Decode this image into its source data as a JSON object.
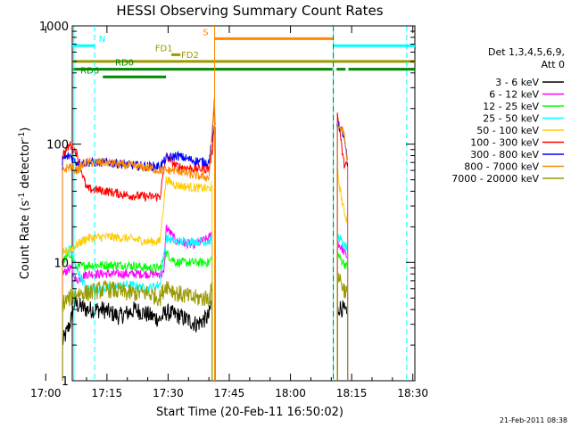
{
  "chart_data": {
    "type": "line",
    "title": "HESSI Observing Summary Count Rates",
    "xlabel": "Start Time (20-Feb-11 16:50:02)",
    "ylabel_parts": [
      "Count Rate (s",
      "-1",
      " detector",
      "-1",
      ")"
    ],
    "timestamp": "21-Feb-2011 08:38",
    "x_range_minutes": [
      16.5,
      100.5
    ],
    "x_ticks": [
      {
        "m": 10,
        "label": "17:00"
      },
      {
        "m": 25,
        "label": "17:15"
      },
      {
        "m": 40,
        "label": "17:30"
      },
      {
        "m": 55,
        "label": "17:45"
      },
      {
        "m": 70,
        "label": "18:00"
      },
      {
        "m": 85,
        "label": "18:15"
      },
      {
        "m": 100,
        "label": "18:30"
      }
    ],
    "y_scale": "log",
    "y_range": [
      1,
      1000
    ],
    "y_ticks": [
      {
        "v": 1,
        "label": "1"
      },
      {
        "v": 10,
        "label": "10"
      },
      {
        "v": 100,
        "label": "100"
      },
      {
        "v": 1000,
        "label": "1000"
      }
    ],
    "legend_header": [
      "Det 1,3,4,5,6,9,",
      "Att 0"
    ],
    "series": [
      {
        "name": "3 - 6 keV",
        "color": "#000000",
        "points": [
          [
            14.1,
            2.1
          ],
          [
            15,
            2.5
          ],
          [
            16.5,
            3.5
          ],
          [
            17,
            4.5
          ],
          [
            20,
            4
          ],
          [
            24,
            4
          ],
          [
            28,
            3.5
          ],
          [
            32,
            4
          ],
          [
            36,
            3.5
          ],
          [
            38,
            3.3
          ],
          [
            39.5,
            3.8
          ],
          [
            43,
            3.5
          ],
          [
            47,
            3
          ],
          [
            50,
            3.5
          ],
          [
            50.8,
            5
          ]
        ],
        "points2": [
          [
            81.5,
            3.8
          ],
          [
            82,
            4.2
          ],
          [
            83,
            4
          ],
          [
            84,
            3.4
          ]
        ]
      },
      {
        "name": "6 - 12 keV",
        "color": "#ff00ff",
        "points": [
          [
            14.1,
            8
          ],
          [
            16,
            9
          ],
          [
            17.5,
            7
          ],
          [
            20,
            8
          ],
          [
            25,
            8
          ],
          [
            30,
            8
          ],
          [
            35,
            8
          ],
          [
            38,
            8
          ],
          [
            39,
            8
          ],
          [
            39.5,
            20
          ],
          [
            42,
            15
          ],
          [
            46,
            14
          ],
          [
            50,
            16
          ],
          [
            50.8,
            18
          ]
        ],
        "points2": [
          [
            81.5,
            15
          ],
          [
            82,
            14
          ],
          [
            83,
            12.5
          ],
          [
            84,
            11
          ]
        ]
      },
      {
        "name": "12 - 25 keV",
        "color": "#00ff00",
        "points": [
          [
            14.1,
            10
          ],
          [
            16,
            12
          ],
          [
            17.5,
            9
          ],
          [
            20,
            9.5
          ],
          [
            25,
            9.5
          ],
          [
            30,
            9.5
          ],
          [
            35,
            9
          ],
          [
            38,
            9
          ],
          [
            39.5,
            12
          ],
          [
            42,
            10
          ],
          [
            46,
            10
          ],
          [
            50,
            10
          ],
          [
            50.8,
            11
          ]
        ],
        "points2": [
          [
            81.5,
            12
          ],
          [
            82,
            11
          ],
          [
            83,
            10
          ],
          [
            84,
            9
          ]
        ]
      },
      {
        "name": "25 - 50 keV",
        "color": "#00ffff",
        "points": [
          [
            14.1,
            12
          ],
          [
            16,
            13
          ],
          [
            17.5,
            9
          ],
          [
            20,
            6
          ],
          [
            25,
            6
          ],
          [
            30,
            6.5
          ],
          [
            35,
            6
          ],
          [
            38,
            6.5
          ],
          [
            39.5,
            16
          ],
          [
            42,
            15
          ],
          [
            46,
            15
          ],
          [
            50,
            15
          ],
          [
            50.8,
            16
          ]
        ],
        "points2": [
          [
            81.5,
            17
          ],
          [
            82,
            16
          ],
          [
            83,
            14
          ],
          [
            84,
            13
          ]
        ]
      },
      {
        "name": "50 - 100 keV",
        "color": "#ffcc00",
        "points": [
          [
            14.1,
            12
          ],
          [
            16,
            13
          ],
          [
            17.5,
            14
          ],
          [
            20,
            16
          ],
          [
            25,
            16.5
          ],
          [
            30,
            16
          ],
          [
            35,
            15
          ],
          [
            38,
            15
          ],
          [
            39.5,
            50
          ],
          [
            42,
            45
          ],
          [
            46,
            43
          ],
          [
            50,
            42
          ],
          [
            50.8,
            45
          ]
        ],
        "points2": [
          [
            81.5,
            60
          ],
          [
            82,
            45
          ],
          [
            83,
            28
          ],
          [
            84,
            22
          ]
        ]
      },
      {
        "name": "100 - 300 keV",
        "color": "#ff0000",
        "points": [
          [
            14.1,
            80
          ],
          [
            16,
            100
          ],
          [
            17.5,
            85
          ],
          [
            20,
            42
          ],
          [
            25,
            40
          ],
          [
            30,
            37
          ],
          [
            35,
            36
          ],
          [
            38,
            36
          ],
          [
            39.5,
            80
          ],
          [
            42,
            65
          ],
          [
            46,
            62
          ],
          [
            50,
            62
          ],
          [
            50.8,
            85
          ],
          [
            51.3,
            150
          ],
          [
            51.6,
            100
          ]
        ],
        "points2": [
          [
            81.5,
            180
          ],
          [
            82,
            140
          ],
          [
            83,
            70
          ],
          [
            84,
            65
          ]
        ]
      },
      {
        "name": "300 - 800 keV",
        "color": "#0000ff",
        "points": [
          [
            14.1,
            75
          ],
          [
            16,
            80
          ],
          [
            17.5,
            70
          ],
          [
            20,
            70
          ],
          [
            25,
            70
          ],
          [
            30,
            67
          ],
          [
            35,
            65
          ],
          [
            38,
            65
          ],
          [
            39.5,
            75
          ],
          [
            42,
            80
          ],
          [
            46,
            73
          ],
          [
            50,
            70
          ],
          [
            50.8,
            110
          ],
          [
            51.3,
            200
          ],
          [
            51.6,
            140
          ]
        ],
        "points2": [
          [
            81.5,
            150
          ],
          [
            82,
            140
          ],
          [
            83,
            120
          ],
          [
            84,
            70
          ]
        ]
      },
      {
        "name": "800 - 7000 keV",
        "color": "#ff8800",
        "points": [
          [
            14.1,
            60
          ],
          [
            16,
            65
          ],
          [
            17.5,
            60
          ],
          [
            20,
            70
          ],
          [
            25,
            70
          ],
          [
            30,
            66
          ],
          [
            35,
            63
          ],
          [
            38,
            60
          ],
          [
            39.5,
            60
          ],
          [
            42,
            60
          ],
          [
            46,
            55
          ],
          [
            50,
            52
          ],
          [
            50.8,
            120
          ],
          [
            51.3,
            250
          ],
          [
            51.6,
            140
          ]
        ],
        "points2": [
          [
            81.5,
            140
          ],
          [
            82,
            138
          ],
          [
            83,
            130
          ],
          [
            84,
            65
          ]
        ]
      },
      {
        "name": "7000 - 20000 keV",
        "color": "#999900",
        "points": [
          [
            14.1,
            4.5
          ],
          [
            16,
            5
          ],
          [
            17.5,
            5.5
          ],
          [
            20,
            5.5
          ],
          [
            25,
            6
          ],
          [
            30,
            5.5
          ],
          [
            35,
            5.5
          ],
          [
            38,
            5
          ],
          [
            39.5,
            6.5
          ],
          [
            42,
            5.5
          ],
          [
            46,
            5
          ],
          [
            50,
            5
          ],
          [
            50.8,
            6
          ]
        ],
        "points2": [
          [
            81.5,
            8
          ],
          [
            82,
            7.5
          ],
          [
            83,
            6
          ],
          [
            84,
            5.5
          ]
        ]
      }
    ],
    "flags": [
      {
        "label": "N",
        "color": "#00ffff",
        "segments": [
          [
            16.5,
            22
          ],
          [
            80.5,
            100.5
          ]
        ],
        "label_m": 23,
        "value": 680
      },
      {
        "label": "S",
        "color": "#ff8800",
        "segments": [
          [
            51.5,
            80.5
          ]
        ],
        "label_m": 48.5,
        "value": 780
      },
      {
        "label": "FD1",
        "color": "#999900",
        "segments": [
          [
            40.8,
            43
          ]
        ],
        "label_m": 36.8,
        "value": 570
      },
      {
        "label": "FD2",
        "color": "#999900",
        "segments": [
          [
            16.5,
            100.5
          ]
        ],
        "label_m": 43.2,
        "value": 500
      },
      {
        "label": "RD0",
        "color": "#008800",
        "segments": [
          [
            16.5,
            80.3
          ],
          [
            81.3,
            83.5
          ],
          [
            84.2,
            100.5
          ]
        ],
        "label_m": 27,
        "value": 430
      },
      {
        "label": "RD6",
        "color": "#008800",
        "segments": [
          [
            24,
            39.5
          ]
        ],
        "label_m": 18.5,
        "value": 370
      }
    ],
    "vlines": [
      {
        "m": 16.9,
        "color": "#00ffff",
        "style": "solid"
      },
      {
        "m": 22,
        "color": "#00ffff",
        "style": "dash"
      },
      {
        "m": 51.4,
        "color": "#ff8800",
        "style": "solid"
      },
      {
        "m": 80.5,
        "color": "#00ffff",
        "style": "solid"
      },
      {
        "m": 80.5,
        "color": "#008800",
        "style": "dash"
      },
      {
        "m": 98.5,
        "color": "#00ffff",
        "style": "dash"
      }
    ]
  }
}
